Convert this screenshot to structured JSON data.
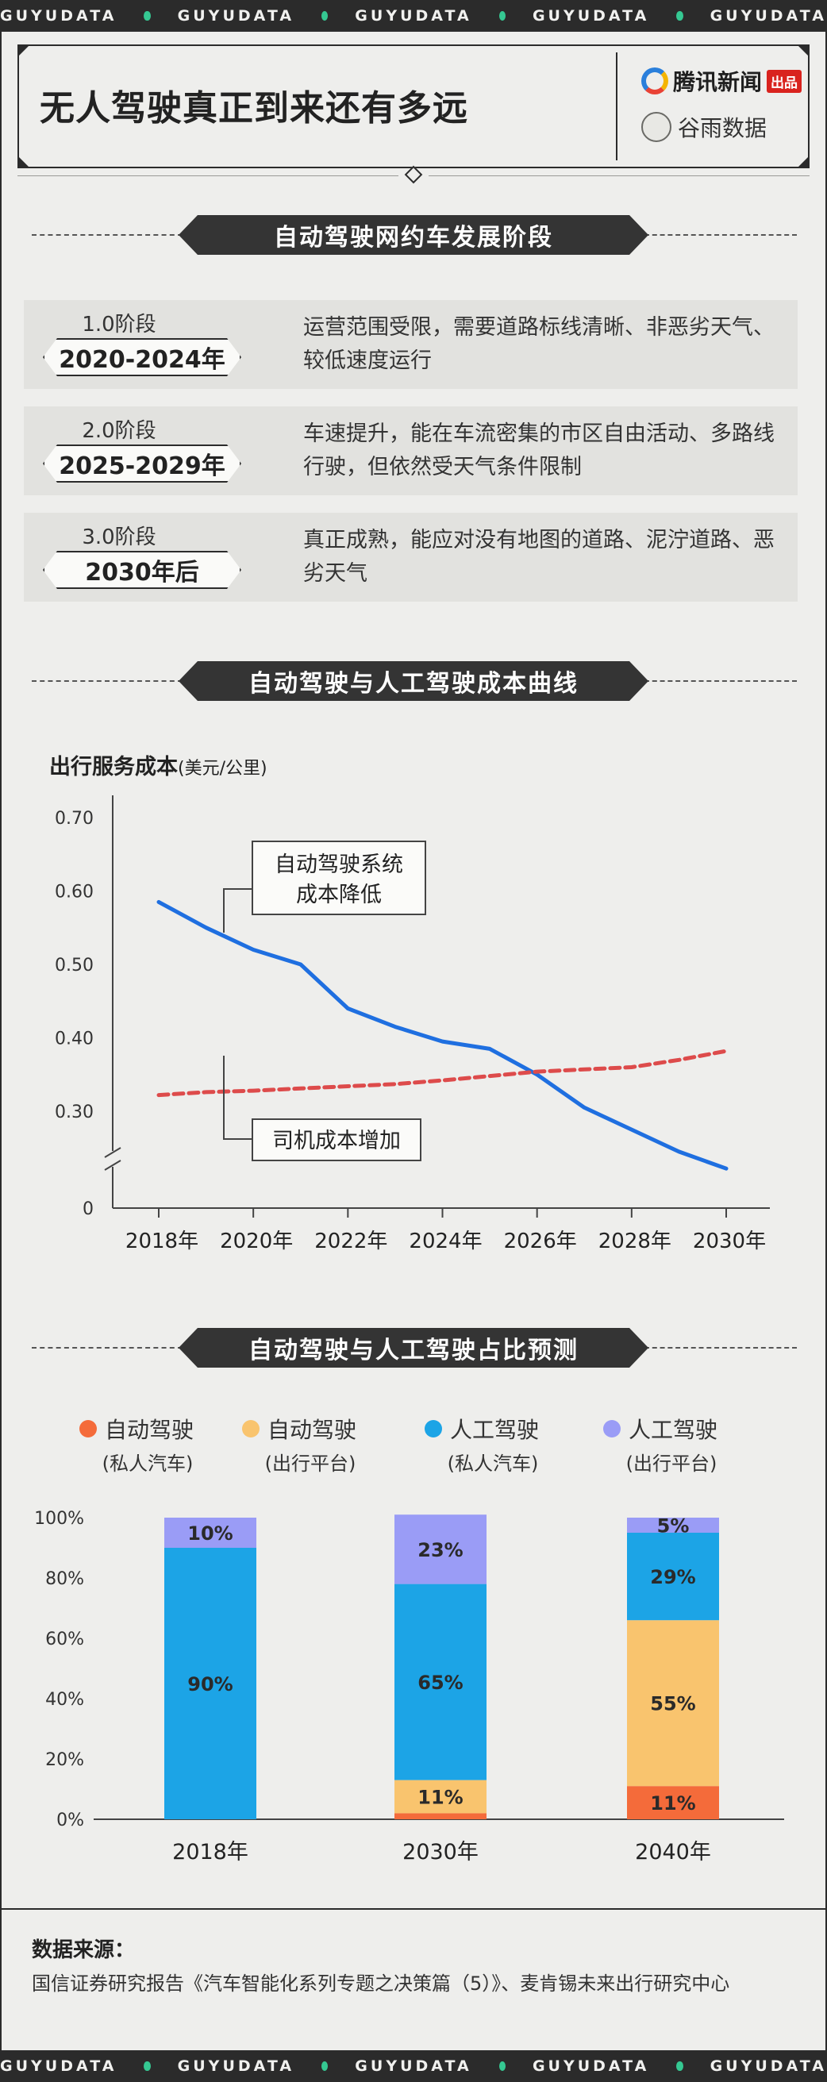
{
  "watermark": "GUYUDATA",
  "main_title": "无人驾驶真正到来还有多远",
  "brand": {
    "publisher": "腾讯新闻",
    "publisher_tag": "出品",
    "partner": "谷雨数据"
  },
  "section1": {
    "title": "自动驾驶网约车发展阶段",
    "stages": [
      {
        "label": "1.0阶段",
        "years": "2020-2024年",
        "desc": "运营范围受限，需要道路标线清晰、非恶劣天气、较低速度运行"
      },
      {
        "label": "2.0阶段",
        "years": "2025-2029年",
        "desc": "车速提升，能在车流密集的市区自由活动、多路线行驶，但依然受天气条件限制"
      },
      {
        "label": "3.0阶段",
        "years": "2030年后",
        "desc": "真正成熟，能应对没有地图的道路、泥泞道路、恶劣天气"
      }
    ]
  },
  "section2": {
    "title": "自动驾驶与人工驾驶成本曲线"
  },
  "section3": {
    "title": "自动驾驶与人工驾驶占比预测"
  },
  "colors": {
    "line_auto": "#1f6fe0",
    "line_driver": "#dd4b4b",
    "auto_private": "#f46b3a",
    "auto_platform": "#f9c46e",
    "human_private": "#1ca4e6",
    "human_platform": "#9a9cf6"
  },
  "chart_data": [
    {
      "type": "line",
      "title": "",
      "ylabel": "出行服务成本",
      "ylabel_unit": "(美元/公里)",
      "x": [
        "2018年",
        "2019年",
        "2020年",
        "2021年",
        "2022年",
        "2023年",
        "2024年",
        "2025年",
        "2026年",
        "2027年",
        "2028年",
        "2029年",
        "2030年"
      ],
      "x_ticks": [
        "2018年",
        "2020年",
        "2022年",
        "2024年",
        "2026年",
        "2028年",
        "2030年"
      ],
      "y_ticks": [
        "0.70",
        "0.60",
        "0.50",
        "0.40",
        "0.30"
      ],
      "y_zero_label": "0",
      "ylim": [
        0.25,
        0.72
      ],
      "y_axis_break": true,
      "series": [
        {
          "name": "",
          "values": [
            0.585,
            0.55,
            0.52,
            0.5,
            0.44,
            0.415,
            0.395,
            0.385,
            0.35,
            0.305,
            0.275,
            0.245,
            0.222
          ]
        },
        {
          "name": "",
          "values": [
            0.322,
            0.326,
            0.328,
            0.331,
            0.334,
            0.337,
            0.342,
            0.348,
            0.354,
            0.357,
            0.36,
            0.37,
            0.382
          ]
        }
      ],
      "annotations": [
        {
          "text_lines": [
            "自动驾驶系统",
            "成本降低"
          ],
          "series_index": 0
        },
        {
          "text_lines": [
            "司机成本增加"
          ],
          "series_index": 1
        }
      ]
    },
    {
      "type": "bar",
      "stacked": true,
      "title": "",
      "categories": [
        "2018年",
        "2030年",
        "2040年"
      ],
      "y_ticks": [
        "100%",
        "80%",
        "60%",
        "40%",
        "20%",
        "0%"
      ],
      "ylim": [
        0,
        100
      ],
      "series": [
        {
          "name": "自动驾驶",
          "subname": "(私人汽车)",
          "values": [
            0,
            2,
            11
          ],
          "labels": [
            "",
            "",
            "11%"
          ]
        },
        {
          "name": "自动驾驶",
          "subname": "(出行平台)",
          "values": [
            0,
            11,
            55
          ],
          "labels": [
            "",
            "11%",
            "55%"
          ]
        },
        {
          "name": "人工驾驶",
          "subname": "(私人汽车)",
          "values": [
            90,
            65,
            29
          ],
          "labels": [
            "90%",
            "65%",
            "29%"
          ]
        },
        {
          "name": "人工驾驶",
          "subname": "(出行平台)",
          "values": [
            10,
            23,
            5
          ],
          "labels": [
            "10%",
            "23%",
            "5%"
          ]
        }
      ]
    }
  ],
  "source": {
    "heading": "数据来源：",
    "text": "国信证券研究报告《汽车智能化系列专题之决策篇（5）》、麦肯锡未来出行研究中心"
  }
}
